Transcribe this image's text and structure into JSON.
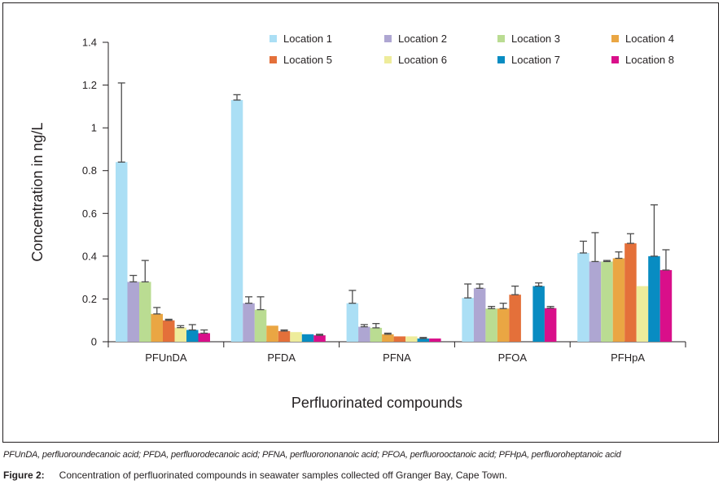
{
  "chart_data": {
    "type": "bar",
    "title": "",
    "xlabel": "Perfluorinated compounds",
    "ylabel": "Concentration in ng/L",
    "ylim": [
      0,
      1.4
    ],
    "yticks": [
      0,
      0.2,
      0.4,
      0.6,
      0.8,
      1,
      1.2,
      1.4
    ],
    "ytick_labels": [
      "0",
      "0.2",
      "0.4",
      "0.6",
      "0.8",
      "1",
      "1.2",
      "1.4"
    ],
    "grid": false,
    "legend_position": "top",
    "error_bars": "upper only",
    "categories": [
      "PFUnDA",
      "PFDA",
      "PFNA",
      "PFOA",
      "PFHpA"
    ],
    "series": [
      {
        "name": "Location 1",
        "color": "#abdff5",
        "values": [
          0.84,
          1.13,
          0.18,
          0.205,
          0.415
        ],
        "error_upper": [
          1.21,
          1.155,
          0.24,
          0.27,
          0.47
        ]
      },
      {
        "name": "Location 2",
        "color": "#aea6d2",
        "values": [
          0.28,
          0.18,
          0.07,
          0.25,
          0.375
        ],
        "error_upper": [
          0.31,
          0.21,
          0.08,
          0.27,
          0.51
        ]
      },
      {
        "name": "Location 3",
        "color": "#badc92",
        "values": [
          0.28,
          0.15,
          0.065,
          0.155,
          0.375
        ],
        "error_upper": [
          0.38,
          0.21,
          0.085,
          0.165,
          0.38
        ]
      },
      {
        "name": "Location 4",
        "color": "#eaa643",
        "values": [
          0.13,
          0.075,
          0.035,
          0.155,
          0.39
        ],
        "error_upper": [
          0.16,
          null,
          0.04,
          0.18,
          0.42
        ]
      },
      {
        "name": "Location 5",
        "color": "#e4703a",
        "values": [
          0.1,
          0.05,
          0.025,
          0.22,
          0.46
        ],
        "error_upper": [
          0.105,
          0.055,
          null,
          0.26,
          0.505
        ]
      },
      {
        "name": "Location 6",
        "color": "#eeec9b",
        "values": [
          0.066,
          0.045,
          0.025,
          0,
          0.26
        ],
        "error_upper": [
          0.075,
          null,
          null,
          null,
          null
        ]
      },
      {
        "name": "Location 7",
        "color": "#088cc2",
        "values": [
          0.055,
          0.035,
          0.015,
          0.26,
          0.4
        ],
        "error_upper": [
          0.08,
          null,
          0.02,
          0.275,
          0.64
        ]
      },
      {
        "name": "Location 8",
        "color": "#d90f8a",
        "values": [
          0.04,
          0.03,
          0.015,
          0.157,
          0.335
        ],
        "error_upper": [
          0.055,
          0.035,
          null,
          0.165,
          0.43
        ]
      }
    ]
  },
  "footer": {
    "abbreviations": "PFUnDA, perfluoroundecanoic acid; PFDA, perfluorodecanoic acid; PFNA, perfluorononanoic acid; PFOA, perfluorooctanoic acid; PFHpA, perfluoroheptanoic acid",
    "figure_label": "Figure 2:",
    "figure_caption": "Concentration of perfluorinated compounds in seawater samples collected off Granger Bay, Cape Town."
  }
}
